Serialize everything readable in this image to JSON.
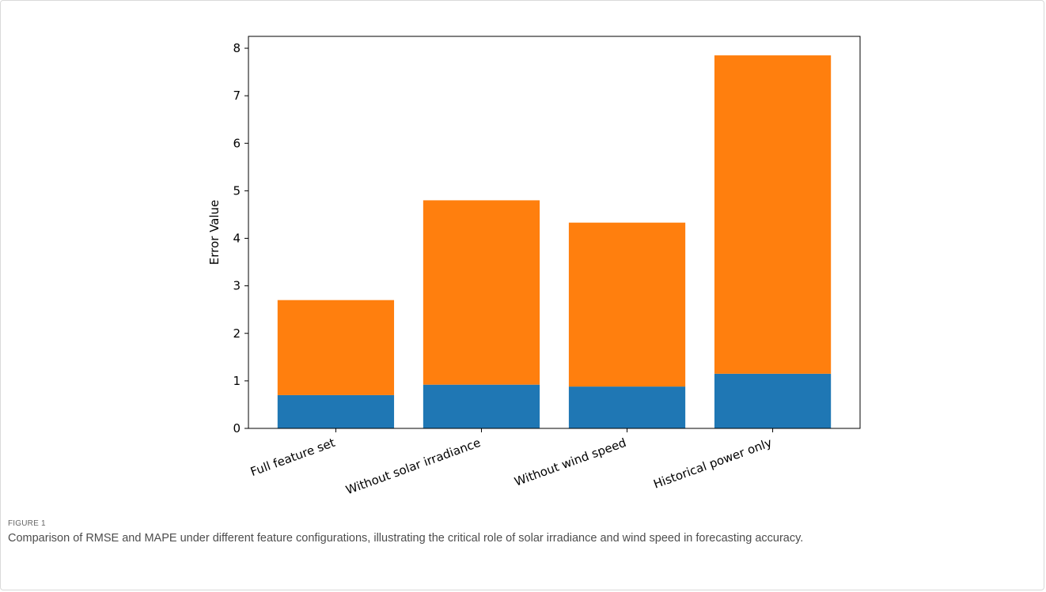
{
  "figure": {
    "label": "FIGURE 1",
    "caption": "Comparison of RMSE and MAPE under different feature configurations, illustrating the critical role of solar irradiance and wind speed in forecasting accuracy."
  },
  "chart_data": {
    "type": "bar",
    "stacked": true,
    "categories": [
      "Full feature set",
      "Without solar irradiance",
      "Without wind speed",
      "Historical power only"
    ],
    "series": [
      {
        "values": [
          0.7,
          0.92,
          0.88,
          1.15
        ],
        "color": "#1f77b4"
      },
      {
        "values": [
          2.0,
          3.88,
          3.45,
          6.7
        ],
        "color": "#ff7f0e"
      }
    ],
    "xlabel": "",
    "ylabel": "Error Value",
    "ylim": [
      0,
      8.25
    ],
    "yticks": [
      "0",
      "1",
      "2",
      "3",
      "4",
      "5",
      "6",
      "7",
      "8"
    ],
    "grid": false,
    "legend": "none"
  }
}
